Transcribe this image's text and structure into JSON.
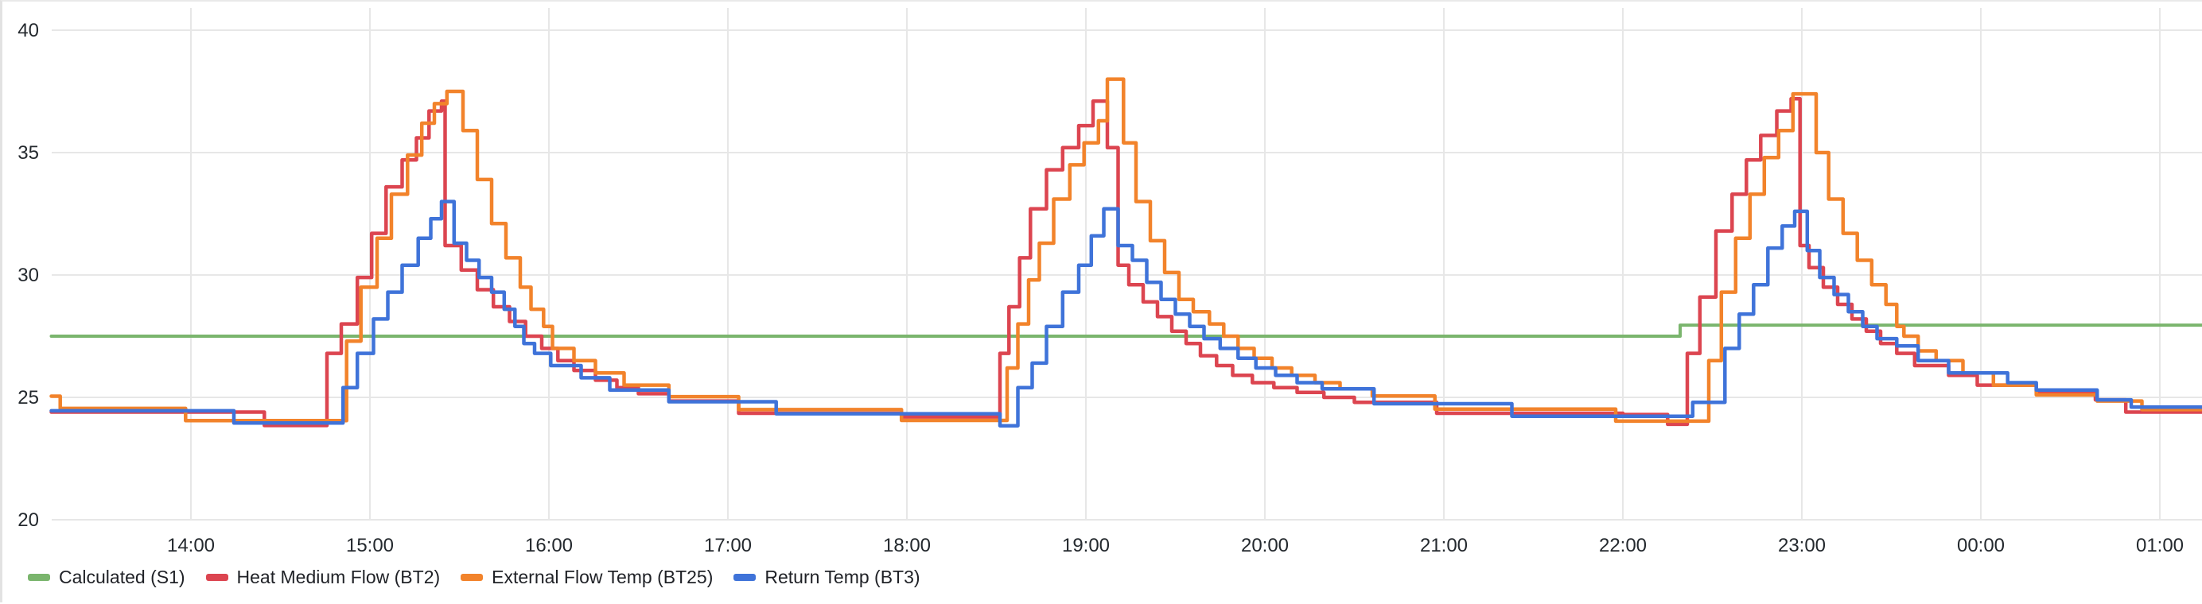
{
  "panel": {
    "background": "#ffffff",
    "grid_color": "#e7e7e7",
    "axis_text_color": "#24292e",
    "legend_text_color": "#1f2126"
  },
  "chart_data": {
    "type": "line",
    "line_style": "step-after",
    "title": "",
    "xlabel": "",
    "ylabel": "",
    "grid": true,
    "legend_position": "bottom-left",
    "x_axis": {
      "unit": "time",
      "range_hours": [
        13.22,
        25.25
      ],
      "ticks": [
        {
          "label": "14:00",
          "hour": 14
        },
        {
          "label": "15:00",
          "hour": 15
        },
        {
          "label": "16:00",
          "hour": 16
        },
        {
          "label": "17:00",
          "hour": 17
        },
        {
          "label": "18:00",
          "hour": 18
        },
        {
          "label": "19:00",
          "hour": 19
        },
        {
          "label": "20:00",
          "hour": 20
        },
        {
          "label": "21:00",
          "hour": 21
        },
        {
          "label": "22:00",
          "hour": 22
        },
        {
          "label": "23:00",
          "hour": 23
        },
        {
          "label": "00:00",
          "hour": 24
        },
        {
          "label": "01:00",
          "hour": 25
        }
      ]
    },
    "y_axis": {
      "ticks": [
        20,
        25,
        30,
        35,
        40
      ],
      "range": [
        20,
        41
      ]
    },
    "series": [
      {
        "name": "Calculated (S1)",
        "color": "#7ab56d",
        "points": [
          [
            13.22,
            27.5
          ],
          [
            22.32,
            27.95
          ]
        ]
      },
      {
        "name": "Heat Medium Flow (BT2)",
        "color": "#dc4550",
        "points": [
          [
            13.22,
            24.4
          ],
          [
            14.41,
            23.85
          ],
          [
            14.76,
            26.8
          ],
          [
            14.84,
            28.0
          ],
          [
            14.93,
            29.9
          ],
          [
            15.01,
            31.7
          ],
          [
            15.09,
            33.6
          ],
          [
            15.18,
            34.7
          ],
          [
            15.26,
            35.6
          ],
          [
            15.33,
            36.7
          ],
          [
            15.4,
            37.1
          ],
          [
            15.42,
            31.2
          ],
          [
            15.51,
            30.2
          ],
          [
            15.6,
            29.4
          ],
          [
            15.69,
            28.7
          ],
          [
            15.78,
            28.1
          ],
          [
            15.87,
            27.5
          ],
          [
            15.96,
            27.0
          ],
          [
            16.05,
            26.5
          ],
          [
            16.14,
            26.1
          ],
          [
            16.26,
            25.7
          ],
          [
            16.38,
            25.4
          ],
          [
            16.5,
            25.15
          ],
          [
            16.67,
            24.85
          ],
          [
            17.06,
            24.35
          ],
          [
            17.97,
            24.2
          ],
          [
            18.52,
            26.8
          ],
          [
            18.57,
            28.7
          ],
          [
            18.63,
            30.7
          ],
          [
            18.69,
            32.7
          ],
          [
            18.78,
            34.3
          ],
          [
            18.87,
            35.2
          ],
          [
            18.96,
            36.1
          ],
          [
            19.04,
            37.1
          ],
          [
            19.12,
            35.2
          ],
          [
            19.18,
            30.4
          ],
          [
            19.24,
            29.6
          ],
          [
            19.32,
            28.9
          ],
          [
            19.4,
            28.3
          ],
          [
            19.48,
            27.7
          ],
          [
            19.56,
            27.2
          ],
          [
            19.64,
            26.7
          ],
          [
            19.73,
            26.3
          ],
          [
            19.82,
            25.9
          ],
          [
            19.93,
            25.6
          ],
          [
            20.05,
            25.4
          ],
          [
            20.18,
            25.2
          ],
          [
            20.33,
            25.0
          ],
          [
            20.5,
            24.8
          ],
          [
            20.96,
            24.35
          ],
          [
            22.0,
            24.3
          ],
          [
            22.25,
            23.9
          ],
          [
            22.36,
            26.8
          ],
          [
            22.43,
            29.1
          ],
          [
            22.52,
            31.8
          ],
          [
            22.61,
            33.3
          ],
          [
            22.69,
            34.7
          ],
          [
            22.77,
            35.7
          ],
          [
            22.86,
            36.7
          ],
          [
            22.94,
            37.2
          ],
          [
            22.99,
            31.2
          ],
          [
            23.04,
            30.3
          ],
          [
            23.12,
            29.5
          ],
          [
            23.2,
            28.8
          ],
          [
            23.28,
            28.2
          ],
          [
            23.36,
            27.7
          ],
          [
            23.44,
            27.2
          ],
          [
            23.53,
            26.8
          ],
          [
            23.63,
            26.3
          ],
          [
            23.82,
            25.9
          ],
          [
            23.98,
            25.5
          ],
          [
            24.31,
            25.2
          ],
          [
            24.64,
            24.9
          ],
          [
            24.81,
            24.4
          ]
        ]
      },
      {
        "name": "External Flow Temp (BT25)",
        "color": "#f2832b",
        "points": [
          [
            13.22,
            25.05
          ],
          [
            13.27,
            24.55
          ],
          [
            13.97,
            24.05
          ],
          [
            14.87,
            27.3
          ],
          [
            14.95,
            29.5
          ],
          [
            15.04,
            31.5
          ],
          [
            15.12,
            33.3
          ],
          [
            15.21,
            34.9
          ],
          [
            15.29,
            36.2
          ],
          [
            15.36,
            37.0
          ],
          [
            15.43,
            37.5
          ],
          [
            15.52,
            35.9
          ],
          [
            15.6,
            33.9
          ],
          [
            15.68,
            32.1
          ],
          [
            15.76,
            30.7
          ],
          [
            15.84,
            29.5
          ],
          [
            15.9,
            28.6
          ],
          [
            15.97,
            27.9
          ],
          [
            16.02,
            27.0
          ],
          [
            16.14,
            26.5
          ],
          [
            16.26,
            26.0
          ],
          [
            16.42,
            25.5
          ],
          [
            16.67,
            25.03
          ],
          [
            17.06,
            24.5
          ],
          [
            17.97,
            24.06
          ],
          [
            18.56,
            26.2
          ],
          [
            18.62,
            28.0
          ],
          [
            18.68,
            29.8
          ],
          [
            18.74,
            31.3
          ],
          [
            18.82,
            33.1
          ],
          [
            18.91,
            34.5
          ],
          [
            18.99,
            35.4
          ],
          [
            19.07,
            36.3
          ],
          [
            19.12,
            38.0
          ],
          [
            19.21,
            35.4
          ],
          [
            19.28,
            33.0
          ],
          [
            19.36,
            31.4
          ],
          [
            19.44,
            30.1
          ],
          [
            19.52,
            29.0
          ],
          [
            19.6,
            28.5
          ],
          [
            19.69,
            28.0
          ],
          [
            19.77,
            27.5
          ],
          [
            19.85,
            27.0
          ],
          [
            19.94,
            26.6
          ],
          [
            20.04,
            26.2
          ],
          [
            20.15,
            25.9
          ],
          [
            20.28,
            25.6
          ],
          [
            20.42,
            25.35
          ],
          [
            20.6,
            25.06
          ],
          [
            20.95,
            24.52
          ],
          [
            21.96,
            24.03
          ],
          [
            22.48,
            26.5
          ],
          [
            22.55,
            29.3
          ],
          [
            22.63,
            31.5
          ],
          [
            22.71,
            33.3
          ],
          [
            22.79,
            34.8
          ],
          [
            22.87,
            35.9
          ],
          [
            22.95,
            37.4
          ],
          [
            23.08,
            35.0
          ],
          [
            23.15,
            33.1
          ],
          [
            23.23,
            31.7
          ],
          [
            23.31,
            30.6
          ],
          [
            23.39,
            29.6
          ],
          [
            23.47,
            28.8
          ],
          [
            23.53,
            27.9
          ],
          [
            23.57,
            27.5
          ],
          [
            23.65,
            26.9
          ],
          [
            23.75,
            26.5
          ],
          [
            23.9,
            26.0
          ],
          [
            24.07,
            25.5
          ],
          [
            24.31,
            25.1
          ],
          [
            24.65,
            24.85
          ],
          [
            24.9,
            24.5
          ]
        ]
      },
      {
        "name": "Return Temp (BT3)",
        "color": "#3f73d9",
        "points": [
          [
            13.22,
            24.45
          ],
          [
            14.24,
            23.95
          ],
          [
            14.85,
            25.4
          ],
          [
            14.93,
            26.8
          ],
          [
            15.02,
            28.2
          ],
          [
            15.1,
            29.3
          ],
          [
            15.18,
            30.4
          ],
          [
            15.27,
            31.5
          ],
          [
            15.34,
            32.3
          ],
          [
            15.4,
            33.0
          ],
          [
            15.47,
            31.3
          ],
          [
            15.54,
            30.6
          ],
          [
            15.61,
            29.9
          ],
          [
            15.68,
            29.3
          ],
          [
            15.75,
            28.6
          ],
          [
            15.81,
            27.9
          ],
          [
            15.86,
            27.2
          ],
          [
            15.92,
            26.8
          ],
          [
            16.01,
            26.3
          ],
          [
            16.18,
            25.8
          ],
          [
            16.34,
            25.3
          ],
          [
            16.67,
            24.82
          ],
          [
            17.27,
            24.33
          ],
          [
            18.52,
            23.84
          ],
          [
            18.62,
            25.4
          ],
          [
            18.7,
            26.4
          ],
          [
            18.78,
            27.9
          ],
          [
            18.87,
            29.3
          ],
          [
            18.96,
            30.4
          ],
          [
            19.03,
            31.6
          ],
          [
            19.1,
            32.7
          ],
          [
            19.18,
            31.2
          ],
          [
            19.26,
            30.6
          ],
          [
            19.34,
            29.7
          ],
          [
            19.42,
            29.0
          ],
          [
            19.5,
            28.4
          ],
          [
            19.58,
            27.9
          ],
          [
            19.66,
            27.4
          ],
          [
            19.75,
            27.0
          ],
          [
            19.85,
            26.6
          ],
          [
            19.95,
            26.2
          ],
          [
            20.06,
            25.9
          ],
          [
            20.18,
            25.6
          ],
          [
            20.32,
            25.35
          ],
          [
            20.61,
            24.74
          ],
          [
            21.38,
            24.23
          ],
          [
            22.39,
            24.8
          ],
          [
            22.57,
            27.0
          ],
          [
            22.65,
            28.4
          ],
          [
            22.73,
            29.6
          ],
          [
            22.81,
            31.1
          ],
          [
            22.89,
            32.0
          ],
          [
            22.96,
            32.6
          ],
          [
            23.03,
            31.0
          ],
          [
            23.1,
            29.9
          ],
          [
            23.18,
            29.2
          ],
          [
            23.26,
            28.5
          ],
          [
            23.34,
            27.9
          ],
          [
            23.42,
            27.4
          ],
          [
            23.53,
            27.1
          ],
          [
            23.65,
            26.5
          ],
          [
            23.82,
            26.0
          ],
          [
            24.15,
            25.6
          ],
          [
            24.31,
            25.3
          ],
          [
            24.65,
            24.9
          ],
          [
            24.84,
            24.6
          ]
        ]
      }
    ]
  }
}
